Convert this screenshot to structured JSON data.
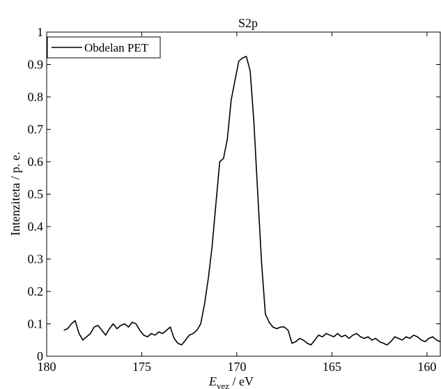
{
  "chart_data": {
    "type": "line",
    "title": "S2p",
    "xlabel": {
      "main": "E",
      "subscript": "vez",
      "suffix": " / eV"
    },
    "ylabel": "Intenziteta / p. e.",
    "xlim": [
      180,
      159.3
    ],
    "ylim": [
      0,
      1
    ],
    "x_reversed": true,
    "xticks": [
      180,
      175,
      170,
      165,
      160
    ],
    "yticks": [
      0,
      0.1,
      0.2,
      0.3,
      0.4,
      0.5,
      0.6,
      0.7,
      0.8,
      0.9,
      1
    ],
    "ytick_labels": [
      "0",
      "0.1",
      "0.2",
      "0.3",
      "0.4",
      "0.5",
      "0.6",
      "0.7",
      "0.8",
      "0.9",
      "1"
    ],
    "grid": false,
    "legend_position": "top-left",
    "colors": {
      "line": "#000000",
      "axes": "#000000",
      "background": "#ffffff"
    },
    "series": [
      {
        "name": "Obdelan PET",
        "x": [
          179.1,
          178.9,
          178.7,
          178.5,
          178.3,
          178.1,
          177.9,
          177.7,
          177.5,
          177.3,
          177.1,
          176.9,
          176.7,
          176.5,
          176.3,
          176.1,
          175.9,
          175.7,
          175.5,
          175.3,
          175.1,
          174.9,
          174.7,
          174.5,
          174.3,
          174.1,
          173.9,
          173.7,
          173.5,
          173.3,
          173.1,
          172.9,
          172.7,
          172.5,
          172.3,
          172.1,
          171.9,
          171.7,
          171.5,
          171.3,
          171.1,
          170.9,
          170.7,
          170.5,
          170.3,
          170.1,
          169.9,
          169.7,
          169.5,
          169.3,
          169.1,
          168.9,
          168.7,
          168.5,
          168.3,
          168.1,
          167.9,
          167.7,
          167.5,
          167.3,
          167.1,
          166.9,
          166.7,
          166.5,
          166.3,
          166.1,
          165.9,
          165.7,
          165.5,
          165.3,
          165.1,
          164.9,
          164.7,
          164.5,
          164.3,
          164.1,
          163.9,
          163.7,
          163.5,
          163.3,
          163.1,
          162.9,
          162.7,
          162.5,
          162.3,
          162.1,
          161.9,
          161.7,
          161.5,
          161.3,
          161.1,
          160.9,
          160.7,
          160.5,
          160.3,
          160.1,
          159.9,
          159.7,
          159.5,
          159.3
        ],
        "y": [
          0.08,
          0.085,
          0.1,
          0.11,
          0.07,
          0.05,
          0.06,
          0.07,
          0.09,
          0.095,
          0.08,
          0.065,
          0.085,
          0.1,
          0.085,
          0.095,
          0.1,
          0.09,
          0.105,
          0.1,
          0.08,
          0.065,
          0.06,
          0.07,
          0.065,
          0.075,
          0.07,
          0.08,
          0.09,
          0.055,
          0.04,
          0.035,
          0.05,
          0.065,
          0.07,
          0.08,
          0.1,
          0.16,
          0.24,
          0.34,
          0.47,
          0.6,
          0.61,
          0.67,
          0.79,
          0.85,
          0.91,
          0.92,
          0.925,
          0.88,
          0.72,
          0.5,
          0.29,
          0.13,
          0.105,
          0.09,
          0.085,
          0.09,
          0.09,
          0.08,
          0.04,
          0.045,
          0.055,
          0.05,
          0.04,
          0.035,
          0.05,
          0.065,
          0.06,
          0.07,
          0.065,
          0.06,
          0.07,
          0.06,
          0.065,
          0.055,
          0.065,
          0.07,
          0.06,
          0.055,
          0.06,
          0.05,
          0.055,
          0.045,
          0.04,
          0.035,
          0.045,
          0.06,
          0.055,
          0.05,
          0.06,
          0.055,
          0.065,
          0.06,
          0.05,
          0.045,
          0.055,
          0.06,
          0.05,
          0.045
        ]
      }
    ]
  }
}
